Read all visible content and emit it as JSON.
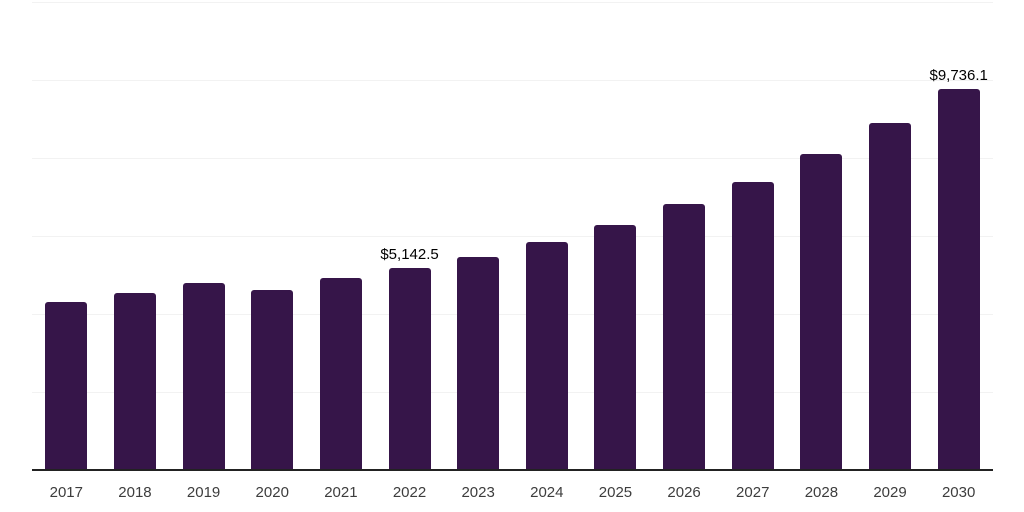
{
  "chart_data": {
    "type": "bar",
    "title": "",
    "xlabel": "",
    "ylabel": "",
    "categories": [
      "2017",
      "2018",
      "2019",
      "2020",
      "2021",
      "2022",
      "2023",
      "2024",
      "2025",
      "2026",
      "2027",
      "2028",
      "2029",
      "2030"
    ],
    "values": [
      4290,
      4525,
      4780,
      4600,
      4910,
      5142.5,
      5425,
      5820,
      6265,
      6805,
      7365,
      8085,
      8875,
      9736.1
    ],
    "data_labels": [
      {
        "category": "2022",
        "text": "$5,142.5"
      },
      {
        "category": "2030",
        "text": "$9,736.1"
      }
    ],
    "ylim": [
      0,
      12000
    ],
    "gridline_step": 2000,
    "grid": "horizontal-only",
    "legend": "none",
    "bar_color": "#361549",
    "gridline_color": "#f2f2f2",
    "axis_line_color": "#222222",
    "tick_label_color": "#3d3d3d",
    "data_label_color": "#000000",
    "background_color": "#ffffff"
  }
}
